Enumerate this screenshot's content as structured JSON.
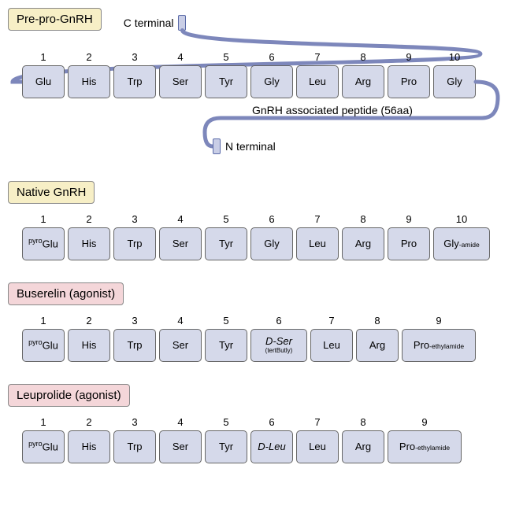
{
  "colors": {
    "aa_fill": "#d5d9ea",
    "aa_stroke": "#666666",
    "title_yellow": "#f7efc6",
    "title_pink": "#f4d6d9",
    "line": "#7d87bb",
    "line_dark": "#5a6aa8",
    "terminal_fill": "#c9cee6",
    "text": "#222222"
  },
  "prepro": {
    "title": "Pre-pro-GnRH",
    "c_terminal": "C terminal",
    "n_terminal": "N terminal",
    "gap_label": "GnRH associated peptide (56aa)",
    "residues": [
      {
        "n": "1",
        "main": "Glu"
      },
      {
        "n": "2",
        "main": "His"
      },
      {
        "n": "3",
        "main": "Trp"
      },
      {
        "n": "4",
        "main": "Ser"
      },
      {
        "n": "5",
        "main": "Tyr"
      },
      {
        "n": "6",
        "main": "Gly"
      },
      {
        "n": "7",
        "main": "Leu"
      },
      {
        "n": "8",
        "main": "Arg"
      },
      {
        "n": "9",
        "main": "Pro"
      },
      {
        "n": "10",
        "main": "Gly"
      }
    ]
  },
  "native": {
    "title": "Native GnRH",
    "residues": [
      {
        "n": "1",
        "sup": "pyro",
        "main": "Glu"
      },
      {
        "n": "2",
        "main": "His"
      },
      {
        "n": "3",
        "main": "Trp"
      },
      {
        "n": "4",
        "main": "Ser"
      },
      {
        "n": "5",
        "main": "Tyr"
      },
      {
        "n": "6",
        "main": "Gly"
      },
      {
        "n": "7",
        "main": "Leu"
      },
      {
        "n": "8",
        "main": "Arg"
      },
      {
        "n": "9",
        "main": "Pro"
      },
      {
        "n": "10",
        "main": "Gly",
        "suffix": "-amide",
        "wide": true
      }
    ]
  },
  "buserelin": {
    "title": "Buserelin (agonist)",
    "residues": [
      {
        "n": "1",
        "sup": "pyro",
        "main": "Glu"
      },
      {
        "n": "2",
        "main": "His"
      },
      {
        "n": "3",
        "main": "Trp"
      },
      {
        "n": "4",
        "main": "Ser"
      },
      {
        "n": "5",
        "main": "Tyr"
      },
      {
        "n": "6",
        "main": "D-Ser",
        "sub": "(tertButly)",
        "italic": true,
        "wide": true
      },
      {
        "n": "7",
        "main": "Leu"
      },
      {
        "n": "8",
        "main": "Arg"
      },
      {
        "n": "9",
        "main": "Pro",
        "suffix": "-ethylamide",
        "wide2": true
      }
    ]
  },
  "leuprolide": {
    "title": "Leuprolide (agonist)",
    "residues": [
      {
        "n": "1",
        "sup": "pyro",
        "main": "Glu"
      },
      {
        "n": "2",
        "main": "His"
      },
      {
        "n": "3",
        "main": "Trp"
      },
      {
        "n": "4",
        "main": "Ser"
      },
      {
        "n": "5",
        "main": "Tyr"
      },
      {
        "n": "6",
        "main": "D-Leu",
        "italic": true
      },
      {
        "n": "7",
        "main": "Leu"
      },
      {
        "n": "8",
        "main": "Arg"
      },
      {
        "n": "9",
        "main": "Pro",
        "suffix": "-ethylamide",
        "wide2": true
      }
    ]
  }
}
